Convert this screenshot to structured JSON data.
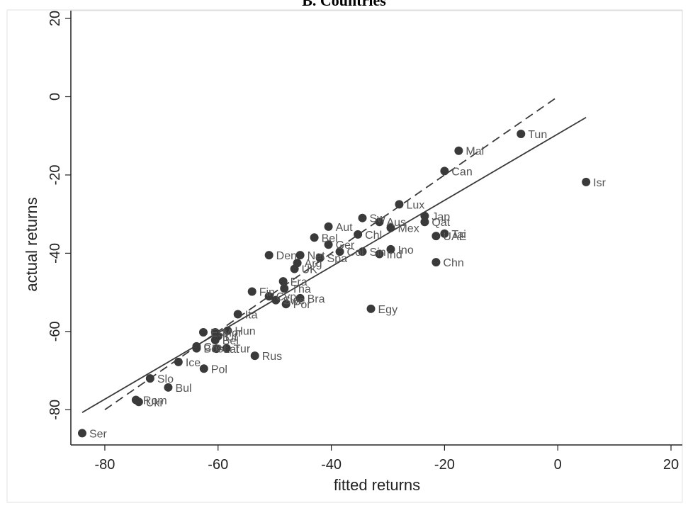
{
  "title": "B. Countries",
  "chart_data": {
    "type": "scatter",
    "title": "B. Countries",
    "xlabel": "fitted returns",
    "ylabel": "actual returns",
    "xlim": [
      -86,
      22
    ],
    "ylim": [
      -89,
      22
    ],
    "xticks": [
      -80,
      -60,
      -40,
      -20,
      0,
      20
    ],
    "yticks": [
      -80,
      -60,
      -40,
      -20,
      0,
      20
    ],
    "grid": false,
    "colors": {
      "point": "#3a3a3a",
      "label": "#555555",
      "line": "#3a3a3a"
    },
    "points": [
      {
        "label": "Tun",
        "x": -6.5,
        "y": -9.5
      },
      {
        "label": "Mal",
        "x": -17.5,
        "y": -13.8
      },
      {
        "label": "Can",
        "x": -20,
        "y": -19
      },
      {
        "label": "Isr",
        "x": 5,
        "y": -21.8
      },
      {
        "label": "Lux",
        "x": -28,
        "y": -27.5
      },
      {
        "label": "Jap",
        "x": -23.5,
        "y": -30.5
      },
      {
        "label": "Qat",
        "x": -23.5,
        "y": -32
      },
      {
        "label": "Tai",
        "x": -20,
        "y": -35
      },
      {
        "label": "UAE",
        "x": -21.5,
        "y": -35.6
      },
      {
        "label": "Chn",
        "x": -21.5,
        "y": -42.3
      },
      {
        "label": "Sw",
        "x": -34.5,
        "y": -31
      },
      {
        "label": "Aus",
        "x": -31.5,
        "y": -32
      },
      {
        "label": "Mex",
        "x": -29.5,
        "y": -33.5
      },
      {
        "label": "Aut",
        "x": -40.5,
        "y": -33.2
      },
      {
        "label": "Chl",
        "x": -35.3,
        "y": -35.2
      },
      {
        "label": "Bel",
        "x": -43,
        "y": -36
      },
      {
        "label": "Ger",
        "x": -40.5,
        "y": -37.8
      },
      {
        "label": "Col",
        "x": -38.5,
        "y": -39.6
      },
      {
        "label": "Sin",
        "x": -34.5,
        "y": -39.6
      },
      {
        "label": "Ino",
        "x": -29.5,
        "y": -39
      },
      {
        "label": "Ind",
        "x": -31.5,
        "y": -40.2
      },
      {
        "label": "Den",
        "x": -51,
        "y": -40.5
      },
      {
        "label": "Net",
        "x": -45.5,
        "y": -40.5
      },
      {
        "label": "Arg",
        "x": -46,
        "y": -42.5
      },
      {
        "label": "Spa",
        "x": -42,
        "y": -41.2
      },
      {
        "label": "UK",
        "x": -46.5,
        "y": -44
      },
      {
        "label": "Fra",
        "x": -48.5,
        "y": -47.2
      },
      {
        "label": "Tha",
        "x": -48.3,
        "y": -49
      },
      {
        "label": "Fin",
        "x": -54,
        "y": -49.8
      },
      {
        "label": "Cyp",
        "x": -51,
        "y": -51
      },
      {
        "label": "Swe",
        "x": -49.8,
        "y": -52
      },
      {
        "label": "Bra",
        "x": -45.5,
        "y": -51.5
      },
      {
        "label": "Por",
        "x": -48,
        "y": -53
      },
      {
        "label": "Ita",
        "x": -56.5,
        "y": -55.6
      },
      {
        "label": "Egy",
        "x": -33,
        "y": -54.2
      },
      {
        "label": "Hun",
        "x": -58.3,
        "y": -59.8
      },
      {
        "label": "Mor",
        "x": -60.5,
        "y": -60.2
      },
      {
        "label": "Est",
        "x": -62.6,
        "y": -60.2
      },
      {
        "label": "Lit",
        "x": -60,
        "y": -61.2
      },
      {
        "label": "Bel",
        "x": -60.5,
        "y": -62.2
      },
      {
        "label": "Lat",
        "x": -60.3,
        "y": -64.4
      },
      {
        "label": "Tur",
        "x": -58.5,
        "y": -64.3
      },
      {
        "label": "Bos",
        "x": -63.8,
        "y": -64.3
      },
      {
        "label": "Cro",
        "x": -63.8,
        "y": -63.8
      },
      {
        "label": "Rus",
        "x": -53.5,
        "y": -66.2
      },
      {
        "label": "Ice",
        "x": -67,
        "y": -67.8
      },
      {
        "label": "Pol",
        "x": -62.5,
        "y": -69.5
      },
      {
        "label": "Slo",
        "x": -72,
        "y": -72
      },
      {
        "label": "Bul",
        "x": -68.8,
        "y": -74.3
      },
      {
        "label": "Rom",
        "x": -74.5,
        "y": -77.5
      },
      {
        "label": "Ukr",
        "x": -74,
        "y": -78
      },
      {
        "label": "Ser",
        "x": -84,
        "y": -86
      }
    ],
    "lines": [
      {
        "style": "solid",
        "x": [
          -84,
          5
        ],
        "y": [
          -80.7,
          -5.3
        ]
      },
      {
        "style": "dashed",
        "x": [
          -80,
          0
        ],
        "y": [
          -80,
          0
        ]
      }
    ]
  }
}
